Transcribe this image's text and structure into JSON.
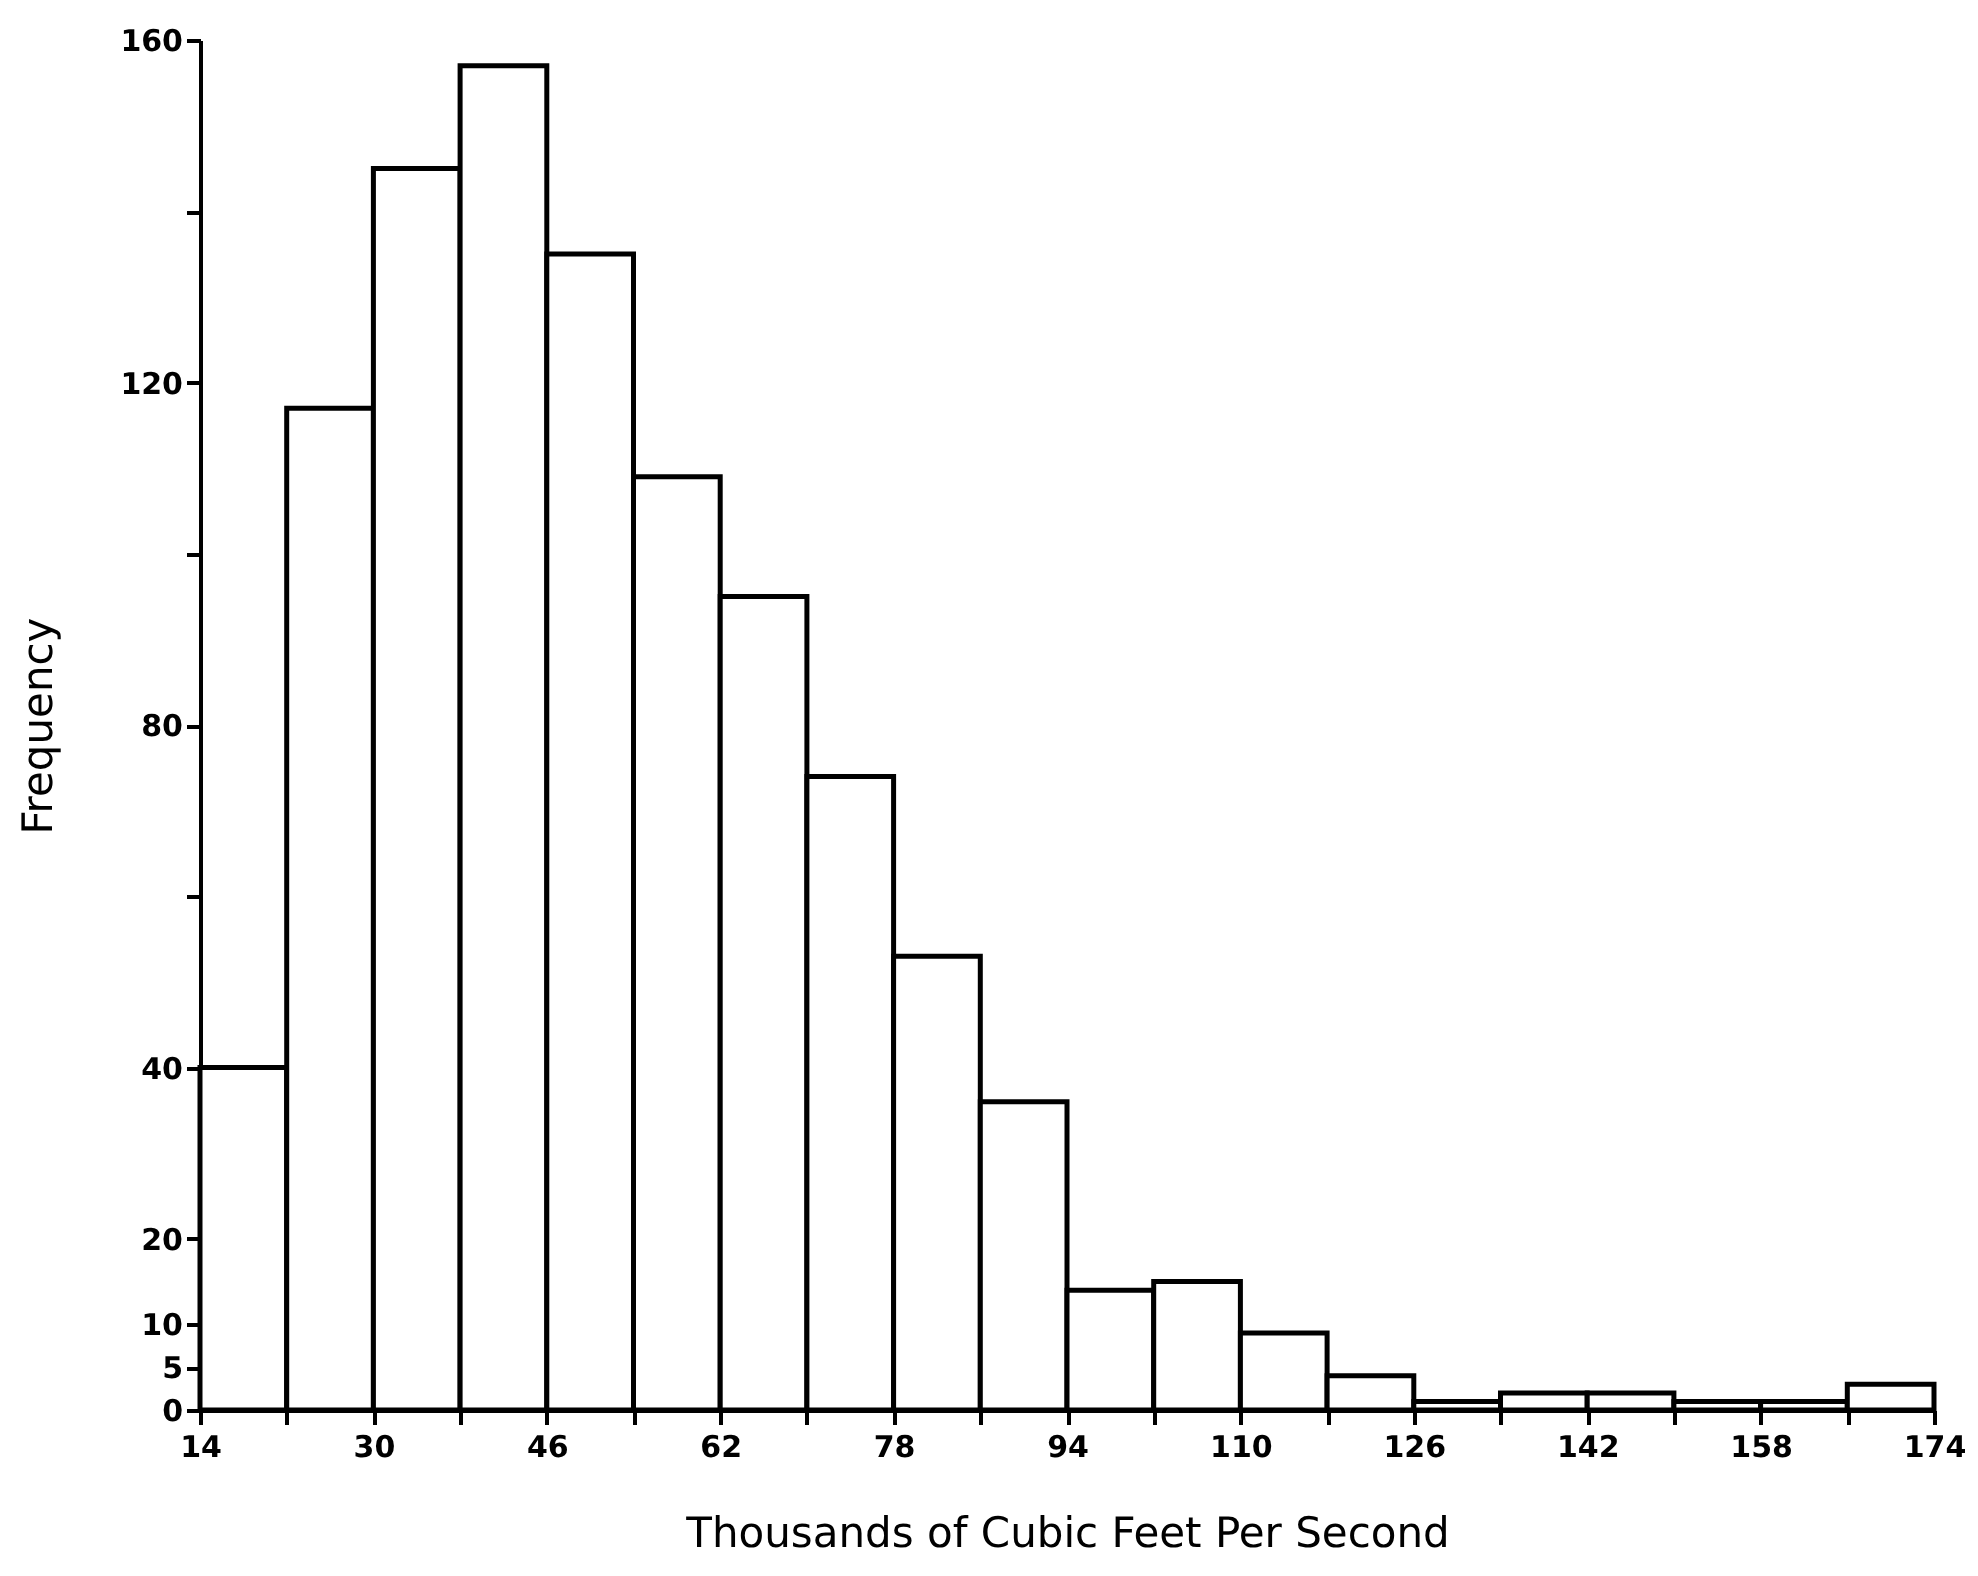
{
  "chart_data": {
    "type": "histogram",
    "xlabel": "Thousands of Cubic Feet Per Second",
    "ylabel": "Frequency",
    "bins": [
      14,
      22,
      30,
      38,
      46,
      54,
      62,
      70,
      78,
      86,
      94,
      102,
      110,
      118,
      126,
      134,
      142,
      150,
      158,
      166,
      174
    ],
    "values": [
      40,
      117,
      145,
      157,
      135,
      109,
      95,
      74,
      53,
      36,
      14,
      15,
      9,
      4,
      1,
      2,
      2,
      1,
      1,
      3
    ],
    "color": "#ffffff",
    "xlim": [
      14,
      174
    ],
    "xticks": [
      14,
      {
        "value": 22,
        "label": null
      },
      30,
      {
        "value": 38,
        "label": null
      },
      46,
      {
        "value": 54,
        "label": null
      },
      62,
      {
        "value": 70,
        "label": null
      },
      78,
      {
        "value": 86,
        "label": null
      },
      94,
      {
        "value": 102,
        "label": null
      },
      110,
      {
        "value": 118,
        "label": null
      },
      126,
      {
        "value": 134,
        "label": null
      },
      142,
      {
        "value": 150,
        "label": null
      },
      158,
      {
        "value": 166,
        "label": null
      },
      174
    ],
    "ylim": [
      0,
      160
    ],
    "yticks": [
      0,
      5,
      10,
      20,
      40,
      {
        "value": 60,
        "label": null
      },
      80,
      {
        "value": 100,
        "label": null
      },
      120,
      {
        "value": 140,
        "label": null
      },
      160
    ],
    "grid": false
  }
}
